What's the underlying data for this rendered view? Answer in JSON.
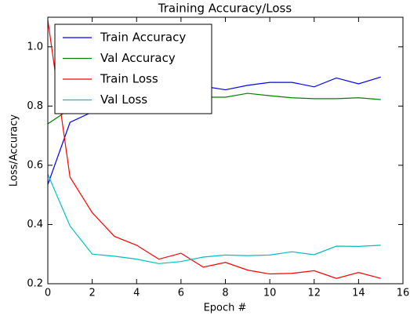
{
  "chart_data": {
    "type": "line",
    "title": "Training Accuracy/Loss",
    "x_label": "Epoch #",
    "y_label": "Loss/Accuracy",
    "x": [
      0,
      1,
      2,
      3,
      4,
      5,
      6,
      7,
      8,
      9,
      10,
      11,
      12,
      13,
      14,
      15
    ],
    "series": [
      {
        "name": "Train Accuracy",
        "color": "#0000ff",
        "values": [
          0.535,
          0.745,
          0.78,
          0.8,
          0.82,
          0.84,
          0.85,
          0.867,
          0.855,
          0.87,
          0.88,
          0.88,
          0.865,
          0.895,
          0.875,
          0.898
        ]
      },
      {
        "name": "Val Accuracy",
        "color": "#008000",
        "values": [
          0.74,
          0.79,
          0.8,
          0.81,
          0.82,
          0.82,
          0.83,
          0.83,
          0.83,
          0.843,
          0.835,
          0.828,
          0.825,
          0.825,
          0.828,
          0.822
        ]
      },
      {
        "name": "Train Loss",
        "color": "#ff0000",
        "values": [
          1.09,
          0.56,
          0.44,
          0.36,
          0.33,
          0.283,
          0.303,
          0.256,
          0.272,
          0.246,
          0.233,
          0.235,
          0.244,
          0.218,
          0.238,
          0.218
        ]
      },
      {
        "name": "Val Loss",
        "color": "#00bfbf",
        "values": [
          0.57,
          0.395,
          0.3,
          0.293,
          0.283,
          0.268,
          0.275,
          0.29,
          0.297,
          0.295,
          0.297,
          0.308,
          0.298,
          0.327,
          0.326,
          0.33
        ]
      }
    ],
    "xlim": [
      0,
      16
    ],
    "xticks": [
      0,
      2,
      4,
      6,
      8,
      10,
      12,
      14,
      16
    ],
    "ylim": [
      0.2,
      1.1
    ],
    "yticks": [
      0.2,
      0.4,
      0.6,
      0.8,
      {
        "value": 1,
        "label": "1.0"
      }
    ],
    "grid": false,
    "legend": "upper left"
  }
}
